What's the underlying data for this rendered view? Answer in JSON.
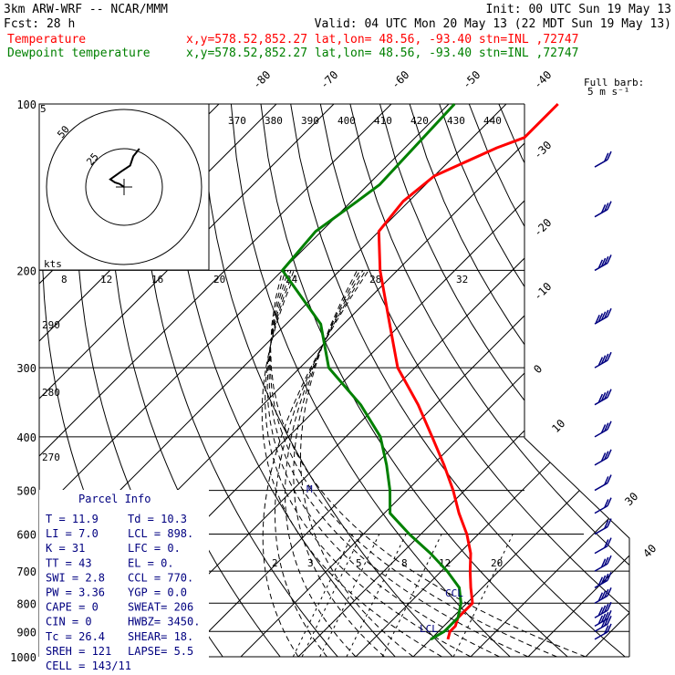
{
  "header": {
    "line1_left": "3km ARW-WRF -- NCAR/MMM",
    "line1_right": "Init: 00 UTC Sun 19 May 13",
    "line2_left": "Fcst:    28 h",
    "line2_right": "Valid: 04 UTC Mon 20 May 13 (22 MDT Sun 19 May 13)",
    "temp_label": "Temperature",
    "temp_info": "x,y=578.52,852.27   lat,lon= 48.56, -93.40  stn=INL ,72747",
    "dew_label": "Dewpoint temperature",
    "dew_info": "x,y=578.52,852.27   lat,lon= 48.56, -93.40  stn=INL ,72747"
  },
  "colors": {
    "temperature": "#ff0000",
    "dewpoint": "#008000",
    "barbs": "#000080"
  },
  "barb_legend": {
    "title": "Full barb:",
    "value": "5 m s⁻¹"
  },
  "hodograph": {
    "label_kts": "kts",
    "rings": [
      25,
      50
    ]
  },
  "parcel": {
    "title": "Parcel Info",
    "rows": [
      [
        "T  =   11.9",
        "Td =  10.3"
      ],
      [
        "LI =    7.0",
        "LCL =  898."
      ],
      [
        "K  =     31",
        "LFC =    0."
      ],
      [
        "TT =     43",
        "EL  =    0."
      ],
      [
        "SWI =   2.8",
        "CCL =  770."
      ],
      [
        "PW =   3.36",
        "YGP =  0.0"
      ],
      [
        "CAPE =    0",
        "SWEAT=  206"
      ],
      [
        "CIN =     0",
        "HWBZ= 3450."
      ],
      [
        "Tc =   26.4",
        "SHEAR=  18."
      ],
      [
        "SREH =  121",
        "LAPSE=  5.5"
      ],
      [
        "CELL = 143/11",
        ""
      ]
    ]
  },
  "annotations": {
    "ccl": "CCL",
    "lcl": "LCL",
    "max_wind": "M"
  },
  "chart_data": {
    "type": "line",
    "diagram": "skew-T log-p",
    "pressure_levels": [
      100,
      200,
      300,
      400,
      500,
      600,
      700,
      800,
      900,
      1000
    ],
    "pressure_tick_labels": [
      "100",
      "200",
      "300",
      "400",
      "500",
      "600",
      "700",
      "800",
      "900",
      "1000"
    ],
    "mixing_ratio_labels": [
      "8",
      "12",
      "16",
      "20",
      "24",
      "28",
      "32"
    ],
    "mixing_ratio_low_labels": [
      "2",
      "3",
      "5",
      "8",
      "12",
      "20"
    ],
    "theta_labels": [
      "370",
      "380",
      "390",
      "400",
      "410",
      "420",
      "430",
      "440"
    ],
    "thetae_labels": [
      "290",
      "280",
      "270"
    ],
    "isotherm_labels": [
      "-80",
      "-70",
      "-60",
      "-50",
      "-40",
      "-30",
      "-20",
      "-10",
      "0",
      "10",
      "30",
      "40"
    ],
    "series": [
      {
        "name": "Temperature",
        "color": "#ff0000",
        "points": [
          [
            100,
            -61
          ],
          [
            115,
            -61
          ],
          [
            120,
            -64
          ],
          [
            135,
            -70
          ],
          [
            150,
            -71
          ],
          [
            170,
            -70
          ],
          [
            200,
            -63
          ],
          [
            250,
            -52
          ],
          [
            300,
            -43
          ],
          [
            350,
            -33
          ],
          [
            400,
            -25
          ],
          [
            450,
            -18
          ],
          [
            500,
            -12
          ],
          [
            550,
            -7
          ],
          [
            600,
            -2
          ],
          [
            650,
            2
          ],
          [
            700,
            5
          ],
          [
            750,
            8
          ],
          [
            800,
            11
          ],
          [
            850,
            11
          ],
          [
            880,
            12
          ],
          [
            900,
            12
          ],
          [
            930,
            13
          ]
        ]
      },
      {
        "name": "Dewpoint temperature",
        "color": "#008000",
        "points": [
          [
            100,
            -79
          ],
          [
            140,
            -78
          ],
          [
            150,
            -79
          ],
          [
            170,
            -81
          ],
          [
            200,
            -80
          ],
          [
            250,
            -64
          ],
          [
            300,
            -55
          ],
          [
            350,
            -43
          ],
          [
            400,
            -34
          ],
          [
            450,
            -28
          ],
          [
            500,
            -23
          ],
          [
            550,
            -19
          ],
          [
            600,
            -12
          ],
          [
            650,
            -5
          ],
          [
            700,
            1
          ],
          [
            750,
            6
          ],
          [
            800,
            9
          ],
          [
            850,
            11
          ],
          [
            900,
            11
          ],
          [
            930,
            10
          ]
        ]
      }
    ],
    "wind_barbs": [
      {
        "p": 130,
        "speed": 10
      },
      {
        "p": 160,
        "speed": 15
      },
      {
        "p": 200,
        "speed": 20
      },
      {
        "p": 250,
        "speed": 25
      },
      {
        "p": 300,
        "speed": 20
      },
      {
        "p": 350,
        "speed": 20
      },
      {
        "p": 400,
        "speed": 15
      },
      {
        "p": 450,
        "speed": 15
      },
      {
        "p": 500,
        "speed": 10
      },
      {
        "p": 550,
        "speed": 10
      },
      {
        "p": 600,
        "speed": 10
      },
      {
        "p": 650,
        "speed": 10
      },
      {
        "p": 700,
        "speed": 15
      },
      {
        "p": 750,
        "speed": 20
      },
      {
        "p": 800,
        "speed": 20
      },
      {
        "p": 850,
        "speed": 20
      },
      {
        "p": 880,
        "speed": 20
      },
      {
        "p": 900,
        "speed": 15
      },
      {
        "p": 930,
        "speed": 10
      }
    ],
    "hodograph_trace": [
      [
        0,
        0
      ],
      [
        -3,
        2
      ],
      [
        -6,
        3
      ],
      [
        -9,
        5
      ],
      [
        -2,
        10
      ],
      [
        4,
        14
      ],
      [
        6,
        20
      ],
      [
        10,
        25
      ]
    ]
  }
}
